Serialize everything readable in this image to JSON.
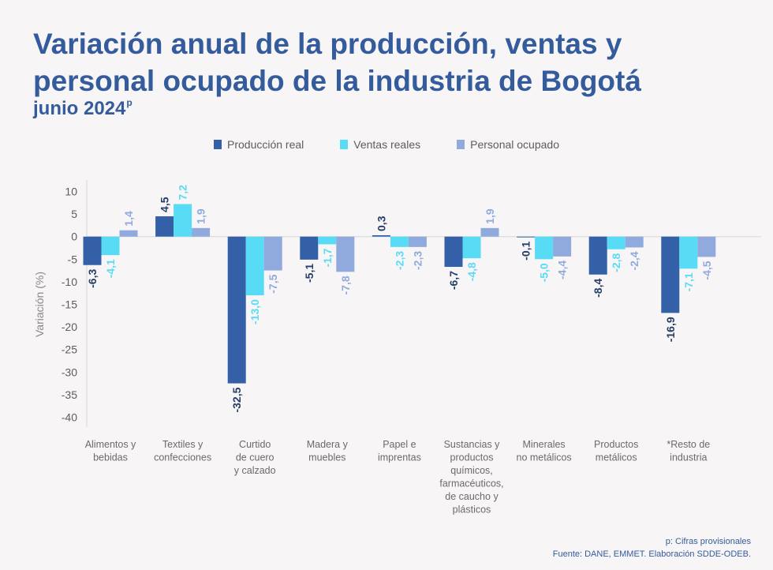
{
  "title": "Variación anual de la producción, ventas y personal ocupado de la industria de Bogotá",
  "subtitle": "junio 2024",
  "subtitle_mark": "p",
  "footnote": "p: Cifras provisionales",
  "source": "Fuente: DANE, EMMET. Elaboración SDDE-ODEB.",
  "colors": {
    "produccion": "#3460a8",
    "ventas": "#58dcf6",
    "personal": "#90aadd",
    "title": "#345c9d"
  },
  "chart_data": {
    "type": "bar",
    "ylabel": "Variación (%)",
    "ylim": [
      -40,
      10
    ],
    "yticks": [
      10,
      5,
      0,
      -5,
      -10,
      -15,
      -20,
      -25,
      -30,
      -35,
      -40
    ],
    "grid": false,
    "legend_position": "top-center",
    "categories": [
      [
        "Alimentos y",
        "bebidas"
      ],
      [
        "Textiles y",
        "confecciones"
      ],
      [
        "Curtido",
        "de cuero",
        "y calzado"
      ],
      [
        "Madera y",
        "muebles"
      ],
      [
        "Papel e",
        "imprentas"
      ],
      [
        "Sustancias y",
        "productos",
        "químicos,",
        "farmacéuticos,",
        "de caucho y",
        "plásticos"
      ],
      [
        "Minerales",
        "no metálicos"
      ],
      [
        "Productos",
        "metálicos"
      ],
      [
        "*Resto de",
        "industria"
      ]
    ],
    "series": [
      {
        "name": "Producción real",
        "key": "produccion",
        "values": [
          -6.3,
          4.5,
          -32.5,
          -5.1,
          0.3,
          -6.7,
          -0.1,
          -8.4,
          -16.9
        ]
      },
      {
        "name": "Ventas reales",
        "key": "ventas",
        "values": [
          -4.1,
          7.2,
          -13.0,
          -1.7,
          -2.3,
          -4.8,
          -5.0,
          -2.8,
          -7.1
        ]
      },
      {
        "name": "Personal ocupado",
        "key": "personal",
        "values": [
          1.4,
          1.9,
          -7.5,
          -7.8,
          -2.3,
          1.9,
          -4.4,
          -2.4,
          -4.5
        ]
      }
    ]
  }
}
